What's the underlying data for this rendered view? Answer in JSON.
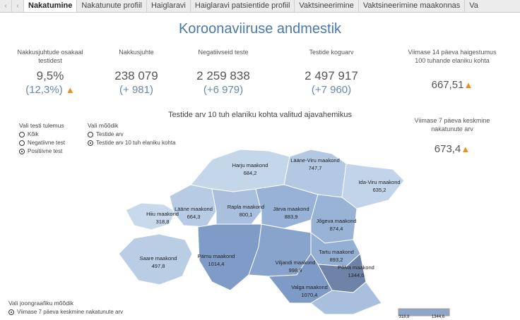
{
  "tabs": [
    {
      "label": "Nakatumine",
      "active": true
    },
    {
      "label": "Nakatunute profiil",
      "active": false
    },
    {
      "label": "Haiglaravi",
      "active": false
    },
    {
      "label": "Haiglaravi patsientide profiil",
      "active": false
    },
    {
      "label": "Vaktsineerimine",
      "active": false
    },
    {
      "label": "Vaktsineerimine maakonnas",
      "active": false
    },
    {
      "label": "Va",
      "active": false
    }
  ],
  "title": "Koroonaviiruse andmestik",
  "kpis": {
    "positivity": {
      "label": "Nakkusjuhtude osakaal testidest",
      "value": "9,5%",
      "sub": "(12,3%)"
    },
    "cases": {
      "label": "Nakkusjuhte",
      "value": "238 079",
      "sub": "(+ 981)"
    },
    "negative": {
      "label": "Negatiivseid teste",
      "value": "2 259 838",
      "sub": "(+6 979)"
    },
    "tests": {
      "label": "Testide koguarv",
      "value": "2 497 917",
      "sub": "(+7 960)"
    },
    "rate14": {
      "label": "Viimase 14 päeva haigestumus 100 tuhande elaniku kohta",
      "value": "667,51"
    },
    "avg7": {
      "label": "Viimase 7 päeva keskmine nakatunute arv",
      "value": "673,4"
    }
  },
  "map": {
    "title": "Testide arv 10 tuh elaniku kohta valitud ajavahemikus",
    "counties": [
      {
        "name": "Harju maakond",
        "value": "684,2"
      },
      {
        "name": "Lääne-Viru maakond",
        "value": "747,7"
      },
      {
        "name": "Ida-Viru maakond",
        "value": "635,2"
      },
      {
        "name": "Rapla maakond",
        "value": "800,1"
      },
      {
        "name": "Järva maakond",
        "value": "883,9"
      },
      {
        "name": "Lääne maakond",
        "value": "664,3"
      },
      {
        "name": "Hiiu maakond",
        "value": "318,8"
      },
      {
        "name": "Jõgeva maakond",
        "value": "874,4"
      },
      {
        "name": "Saare maakond",
        "value": "497,8"
      },
      {
        "name": "Pärnu maakond",
        "value": "1014,4"
      },
      {
        "name": "Viljandi maakond",
        "value": "998,9"
      },
      {
        "name": "Tartu maakond",
        "value": "893,2"
      },
      {
        "name": "Põlva maakond",
        "value": "1344,6"
      },
      {
        "name": "Valga maakond",
        "value": "1070,4"
      }
    ]
  },
  "filters": {
    "test_result": {
      "label": "Vali testi tulemus",
      "options": [
        "Kõik",
        "Negatiivne test",
        "Positiivne test"
      ],
      "selected": "Positiivne test"
    },
    "measure": {
      "label": "Vali mõõdik",
      "options": [
        "Testide arv",
        "Testide arv 10 tuh elaniku kohta"
      ],
      "selected": "Testide arv 10 tuh elaniku kohta"
    },
    "chart_measure": {
      "label": "Vali joongraafiku mõõdik",
      "options": [
        "Viimase 7 päeva keskmine nakatunute arv"
      ],
      "selected": "Viimase 7 päeva keskmine nakatunute arv"
    }
  },
  "legend": {
    "min": "318,8",
    "max": "1344,6"
  },
  "colors": {
    "accent": "#4a78a8",
    "increase": "#f08c1a",
    "map_light": "#c6d7ea",
    "map_dark": "#6e7fa3"
  }
}
